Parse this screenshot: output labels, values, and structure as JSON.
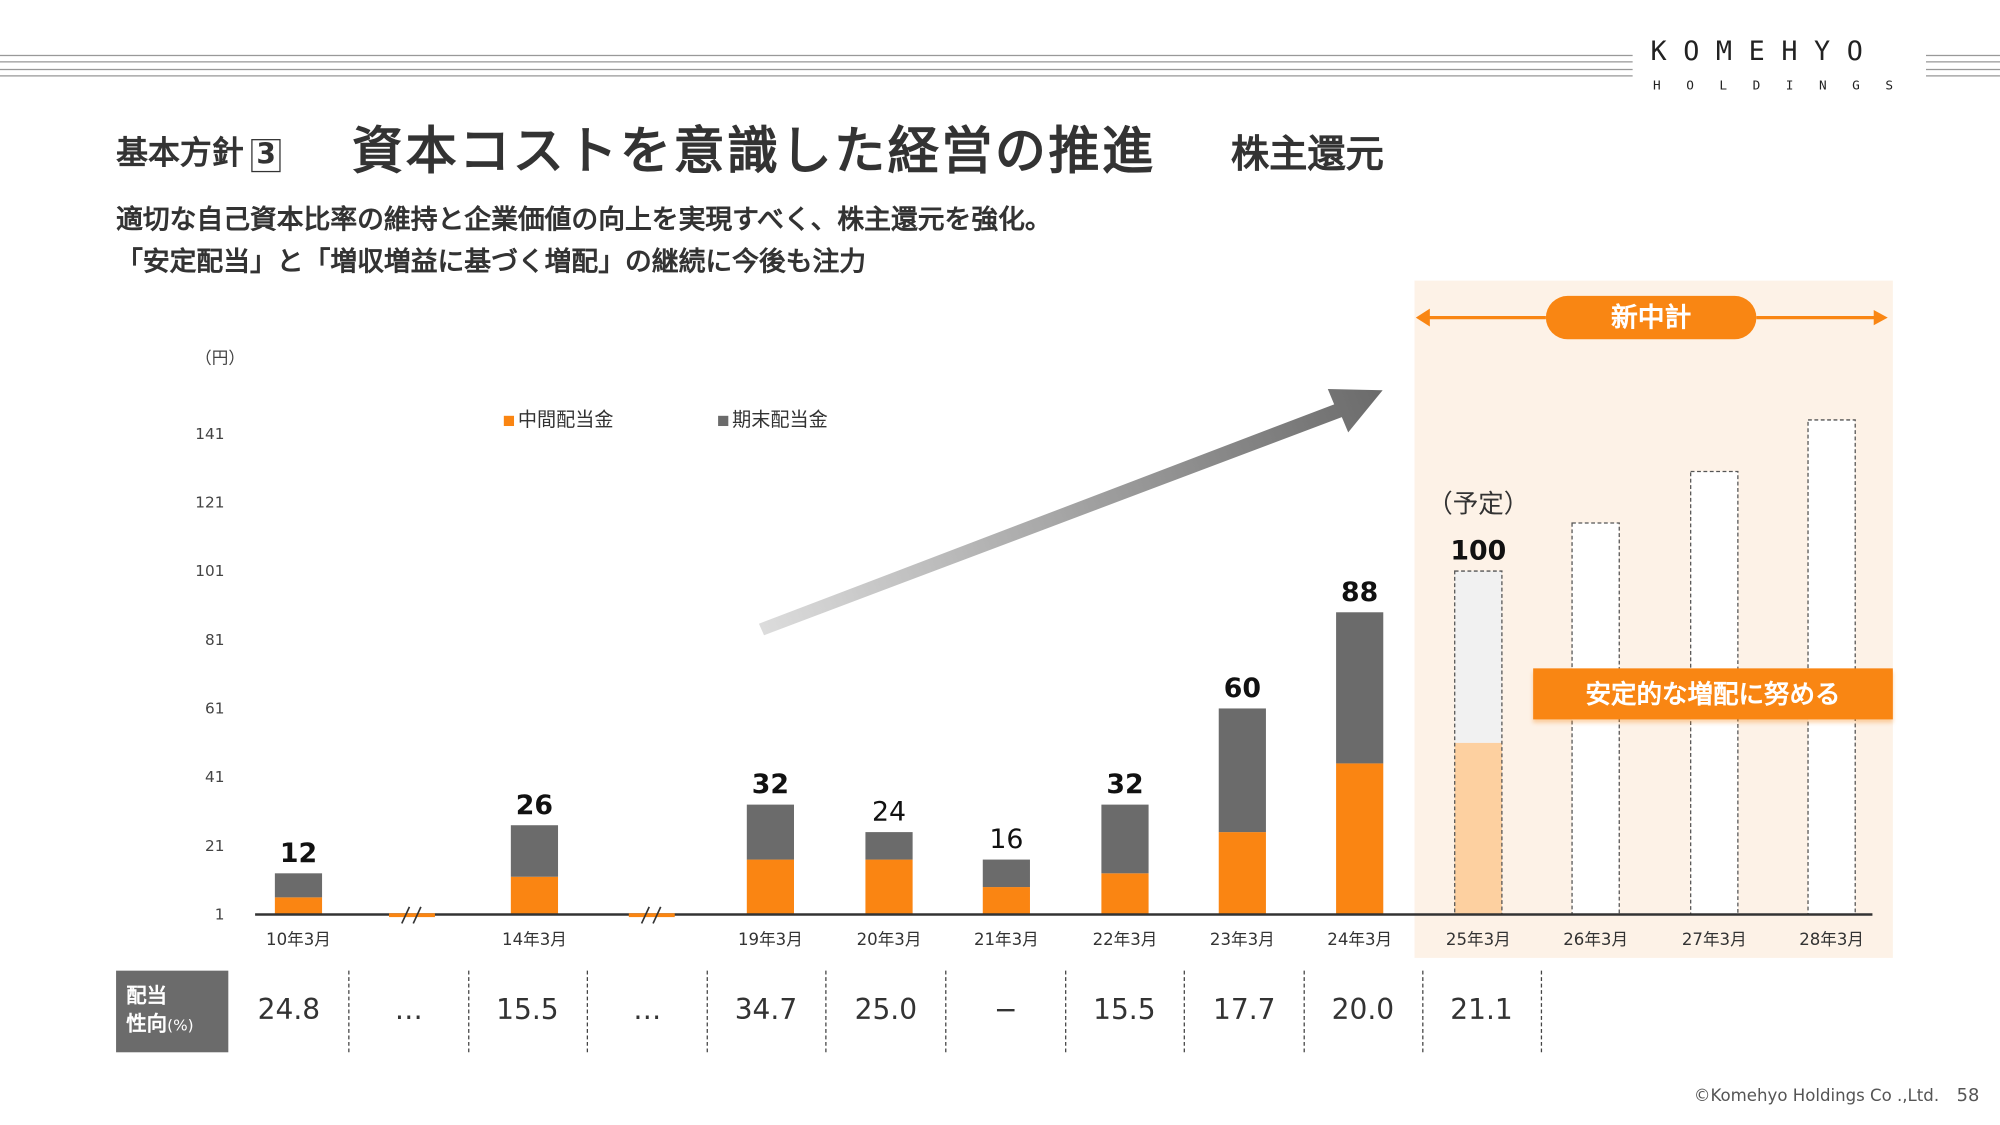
{
  "header": {
    "logo_main": "KOMEHYO",
    "logo_sub": "HOLDINGS"
  },
  "title": {
    "prefix": "基本方針",
    "number": "3",
    "main": "資本コストを意識した経営の推進",
    "sub": "株主還元"
  },
  "lead": [
    "適切な自己資本比率の維持と企業価値の向上を実現すべく、株主還元を強化。",
    "「安定配当」と「増収増益に基づく増配」の継続に今後も注力"
  ],
  "plan": {
    "pill": "新中計",
    "banner": "安定的な増配に努める",
    "planned_note": "（予定）"
  },
  "colors": {
    "interim": "#fa8512",
    "year_end": "#6b6b6b",
    "planned_interim": "#fdd0a0",
    "planned_year_end": "#f1f1f1",
    "accent": "#f98613",
    "panel": "#fdf2e7"
  },
  "chart_data": {
    "type": "bar",
    "stacked": true,
    "unit": "（円）",
    "ylim": [
      1,
      141
    ],
    "yticks": [
      1,
      21,
      41,
      61,
      81,
      101,
      121,
      141
    ],
    "categories": [
      "10年3月",
      "14年3月",
      "19年3月",
      "20年3月",
      "21年3月",
      "22年3月",
      "23年3月",
      "24年3月",
      "25年3月",
      "26年3月",
      "27年3月",
      "28年3月"
    ],
    "series": [
      {
        "name": "中間配当金",
        "values": [
          5,
          11,
          16,
          16,
          8,
          12,
          24,
          44,
          50,
          null,
          null,
          null
        ]
      },
      {
        "name": "期末配当金",
        "values": [
          7,
          15,
          16,
          8,
          8,
          20,
          36,
          44,
          50,
          null,
          null,
          null
        ]
      }
    ],
    "totals": [
      "12",
      "26",
      "32",
      "24",
      "16",
      "32",
      "60",
      "88",
      "100",
      "",
      "",
      ""
    ],
    "bold_totals": [
      true,
      true,
      true,
      false,
      false,
      true,
      true,
      true,
      true
    ],
    "planned_index": 8,
    "future_outline_values": [
      115,
      130,
      145
    ],
    "axis_breaks_after": [
      "10年3月",
      "14年3月"
    ],
    "legend": "top-left",
    "grid": false
  },
  "ratio": {
    "label1": "配当",
    "label2": "性向",
    "unit": "(%)",
    "values": [
      "24.8",
      "…",
      "15.5",
      "…",
      "34.7",
      "25.0",
      "−",
      "15.5",
      "17.7",
      "20.0",
      "21.1"
    ]
  },
  "footer": {
    "copyright": "©Komehyo Holdings Co .,Ltd.",
    "page": "58"
  }
}
